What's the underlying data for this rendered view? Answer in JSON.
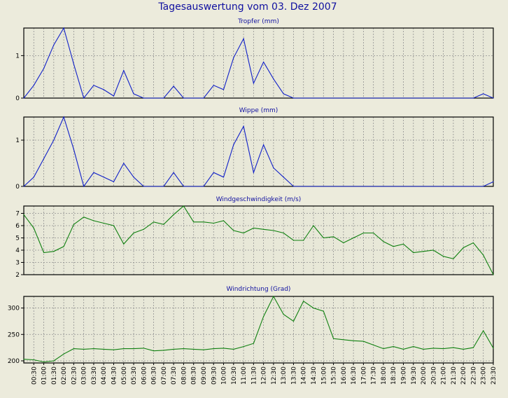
{
  "page_title": "Tagesauswertung vom 03. Dez 2007",
  "colors": {
    "background": "#ecebdc",
    "plot": "#e8e8d8",
    "grid": "#909090",
    "rain": "#1020c8",
    "wind": "#108010",
    "title": "#1010a0"
  },
  "chart_data": [
    {
      "type": "line",
      "title": "Tropfer (mm)",
      "ylim": [
        0,
        1.65
      ],
      "yticks": [
        0,
        1
      ],
      "color": "rain",
      "values": [
        0,
        0.3,
        0.7,
        1.25,
        1.65,
        0.8,
        0,
        0.3,
        0.2,
        0.05,
        0.65,
        0.1,
        0,
        0,
        0,
        0.28,
        0,
        0,
        0,
        0.3,
        0.2,
        0.95,
        1.4,
        0.35,
        0.85,
        0.45,
        0.1,
        0,
        0,
        0,
        0,
        0,
        0,
        0,
        0,
        0,
        0,
        0,
        0,
        0,
        0,
        0,
        0,
        0,
        0,
        0,
        0.1,
        0
      ]
    },
    {
      "type": "line",
      "title": "Wippe (mm)",
      "ylim": [
        0,
        1.5
      ],
      "yticks": [
        0,
        1
      ],
      "color": "rain",
      "values": [
        0,
        0.2,
        0.6,
        1.0,
        1.5,
        0.8,
        0,
        0.3,
        0.2,
        0.1,
        0.5,
        0.2,
        0,
        0,
        0,
        0.3,
        0,
        0,
        0,
        0.3,
        0.2,
        0.9,
        1.3,
        0.3,
        0.9,
        0.4,
        0.2,
        0,
        0,
        0,
        0,
        0,
        0,
        0,
        0,
        0,
        0,
        0,
        0,
        0,
        0,
        0,
        0,
        0,
        0,
        0,
        0,
        0.1
      ]
    },
    {
      "type": "line",
      "title": "Windgeschwindigkeit (m/s)",
      "ylim": [
        2,
        7.6
      ],
      "yticks": [
        2,
        3,
        4,
        5,
        6,
        7
      ],
      "color": "wind",
      "values": [
        6.9,
        5.8,
        3.8,
        3.9,
        4.3,
        6.1,
        6.7,
        6.4,
        6.2,
        6.0,
        4.5,
        5.4,
        5.7,
        6.3,
        6.1,
        6.9,
        7.6,
        6.3,
        6.3,
        6.2,
        6.4,
        5.6,
        5.4,
        5.8,
        5.7,
        5.6,
        5.4,
        4.8,
        4.8,
        6.0,
        5.0,
        5.1,
        4.6,
        5.0,
        5.4,
        5.4,
        4.7,
        4.3,
        4.5,
        3.8,
        3.9,
        4.0,
        3.5,
        3.3,
        4.2,
        4.6,
        3.6,
        2.0
      ]
    },
    {
      "type": "line",
      "title": "Windrichtung (Grad)",
      "ylim": [
        196,
        322
      ],
      "yticks": [
        200,
        250,
        300
      ],
      "color": "wind",
      "values": [
        203,
        202,
        198,
        200,
        213,
        223,
        222,
        223,
        222,
        221,
        223,
        223,
        224,
        219,
        220,
        222,
        223,
        222,
        221,
        223,
        224,
        222,
        227,
        233,
        284,
        322,
        288,
        275,
        313,
        300,
        294,
        242,
        240,
        238,
        237,
        230,
        223,
        227,
        222,
        227,
        222,
        224,
        223,
        225,
        222,
        225,
        257,
        224
      ]
    }
  ],
  "x_labels": [
    "00:30",
    "01:00",
    "01:30",
    "02:00",
    "02:30",
    "03:00",
    "03:30",
    "04:00",
    "04:30",
    "05:00",
    "05:30",
    "06:00",
    "06:30",
    "07:00",
    "07:30",
    "08:00",
    "08:30",
    "09:00",
    "09:30",
    "10:00",
    "10:30",
    "11:00",
    "11:30",
    "12:00",
    "12:30",
    "13:00",
    "13:30",
    "14:00",
    "14:30",
    "15:00",
    "15:30",
    "16:00",
    "16:30",
    "17:00",
    "17:30",
    "18:00",
    "18:30",
    "19:00",
    "19:30",
    "20:00",
    "20:30",
    "21:00",
    "21:30",
    "22:00",
    "22:30",
    "23:00",
    "23:30"
  ]
}
